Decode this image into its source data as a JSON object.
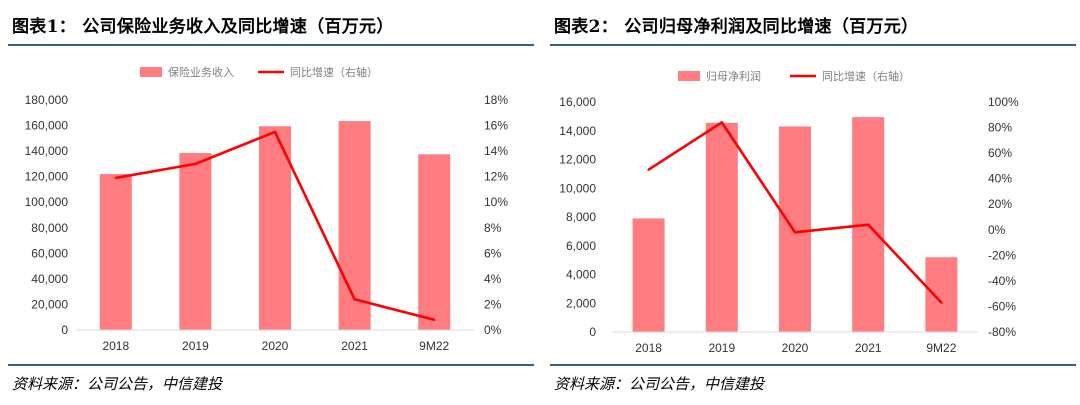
{
  "colors": {
    "bar": "#ff7c80",
    "line": "#ff0000",
    "rule": "#2f5f8a"
  },
  "panels": [
    {
      "title": "图表1： 公司保险业务收入及同比增速（百万元）",
      "source": "资料来源：公司公告，中信建投",
      "chart_data": {
        "type": "bar",
        "categories": [
          "2018",
          "2019",
          "2020",
          "2021",
          "9M22"
        ],
        "series": [
          {
            "name": "保险业务收入",
            "type": "bar",
            "axis": "left",
            "values": [
              122000,
              138500,
              159500,
              163500,
              137500
            ]
          },
          {
            "name": "同比增速（右轴）",
            "type": "line",
            "axis": "right",
            "values": [
              11.9,
              13.0,
              15.5,
              2.4,
              0.8
            ]
          }
        ],
        "left_axis": {
          "ylim": [
            0,
            180000
          ],
          "ticks": [
            0,
            20000,
            40000,
            60000,
            80000,
            100000,
            120000,
            140000,
            160000,
            180000
          ],
          "tick_labels": [
            "0",
            "20,000",
            "40,000",
            "60,000",
            "80,000",
            "100,000",
            "120,000",
            "140,000",
            "160,000",
            "180,000"
          ]
        },
        "right_axis": {
          "ylim": [
            0,
            18
          ],
          "ticks": [
            0,
            2,
            4,
            6,
            8,
            10,
            12,
            14,
            16,
            18
          ],
          "tick_labels": [
            "0%",
            "2%",
            "4%",
            "6%",
            "8%",
            "10%",
            "12%",
            "14%",
            "16%",
            "18%"
          ]
        },
        "legend": "top-center",
        "grid": false
      }
    },
    {
      "title": "图表2： 公司归母净利润及同比增速（百万元）",
      "source": "资料来源：公司公告，中信建投",
      "chart_data": {
        "type": "bar",
        "categories": [
          "2018",
          "2019",
          "2020",
          "2021",
          "9M22"
        ],
        "series": [
          {
            "name": "归母净利润",
            "type": "bar",
            "axis": "left",
            "values": [
              7900,
              14550,
              14300,
              14950,
              5200
            ]
          },
          {
            "name": "同比增速（右轴）",
            "type": "line",
            "axis": "right",
            "values": [
              47,
              84,
              -2,
              4,
              -57
            ]
          }
        ],
        "left_axis": {
          "ylim": [
            0,
            16000
          ],
          "ticks": [
            0,
            2000,
            4000,
            6000,
            8000,
            10000,
            12000,
            14000,
            16000
          ],
          "tick_labels": [
            "0",
            "2,000",
            "4,000",
            "6,000",
            "8,000",
            "10,000",
            "12,000",
            "14,000",
            "16,000"
          ]
        },
        "right_axis": {
          "ylim": [
            -80,
            100
          ],
          "ticks": [
            -80,
            -60,
            -40,
            -20,
            0,
            20,
            40,
            60,
            80,
            100
          ],
          "tick_labels": [
            "-80%",
            "-60%",
            "-40%",
            "-20%",
            "0%",
            "20%",
            "40%",
            "60%",
            "80%",
            "100%"
          ]
        },
        "legend": "top-center",
        "grid": false
      }
    }
  ]
}
